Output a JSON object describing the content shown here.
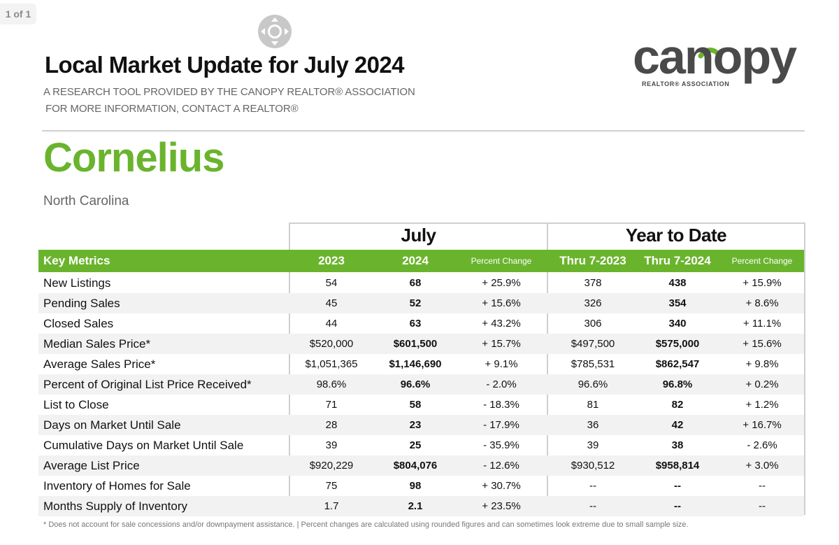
{
  "viewer": {
    "page_indicator": "1 of 1"
  },
  "header": {
    "title": "Local Market Update for July 2024",
    "subtitle_line1": "A RESEARCH TOOL PROVIDED BY THE CANOPY REALTOR® ASSOCIATION",
    "subtitle_line2": "FOR MORE INFORMATION, CONTACT A REALTOR®"
  },
  "logo": {
    "wordmark": "canopy",
    "tagline": "REALTOR® ASSOCIATION",
    "arc_color": "#6ab42d",
    "text_color": "#4a4a4a"
  },
  "location": {
    "city": "Cornelius",
    "state": "North Carolina"
  },
  "colors": {
    "accent_green": "#6ab42d",
    "row_alt": "#f2f2f2"
  },
  "table": {
    "group_july": "July",
    "group_ytd": "Year to Date",
    "headers": {
      "metric": "Key Metrics",
      "july_2023": "2023",
      "july_2024": "2024",
      "july_pct": "Percent Change",
      "ytd_2023": "Thru 7-2023",
      "ytd_2024": "Thru 7-2024",
      "ytd_pct": "Percent Change"
    },
    "rows": [
      {
        "metric": "New Listings",
        "j23": "54",
        "j24": "68",
        "jpct": "+ 25.9%",
        "y23": "378",
        "y24": "438",
        "ypct": "+ 15.9%"
      },
      {
        "metric": "Pending Sales",
        "j23": "45",
        "j24": "52",
        "jpct": "+ 15.6%",
        "y23": "326",
        "y24": "354",
        "ypct": "+ 8.6%"
      },
      {
        "metric": "Closed Sales",
        "j23": "44",
        "j24": "63",
        "jpct": "+ 43.2%",
        "y23": "306",
        "y24": "340",
        "ypct": "+ 11.1%"
      },
      {
        "metric": "Median Sales Price*",
        "j23": "$520,000",
        "j24": "$601,500",
        "jpct": "+ 15.7%",
        "y23": "$497,500",
        "y24": "$575,000",
        "ypct": "+ 15.6%"
      },
      {
        "metric": "Average Sales Price*",
        "j23": "$1,051,365",
        "j24": "$1,146,690",
        "jpct": "+ 9.1%",
        "y23": "$785,531",
        "y24": "$862,547",
        "ypct": "+ 9.8%"
      },
      {
        "metric": "Percent of Original List Price Received*",
        "j23": "98.6%",
        "j24": "96.6%",
        "jpct": "- 2.0%",
        "y23": "96.6%",
        "y24": "96.8%",
        "ypct": "+ 0.2%"
      },
      {
        "metric": "List to Close",
        "j23": "71",
        "j24": "58",
        "jpct": "- 18.3%",
        "y23": "81",
        "y24": "82",
        "ypct": "+ 1.2%"
      },
      {
        "metric": "Days on Market Until Sale",
        "j23": "28",
        "j24": "23",
        "jpct": "- 17.9%",
        "y23": "36",
        "y24": "42",
        "ypct": "+ 16.7%"
      },
      {
        "metric": "Cumulative Days on Market Until Sale",
        "j23": "39",
        "j24": "25",
        "jpct": "- 35.9%",
        "y23": "39",
        "y24": "38",
        "ypct": "- 2.6%"
      },
      {
        "metric": "Average List Price",
        "j23": "$920,229",
        "j24": "$804,076",
        "jpct": "- 12.6%",
        "y23": "$930,512",
        "y24": "$958,814",
        "ypct": "+ 3.0%"
      },
      {
        "metric": "Inventory of Homes for Sale",
        "j23": "75",
        "j24": "98",
        "jpct": "+ 30.7%",
        "y23": "--",
        "y24": "--",
        "ypct": "--"
      },
      {
        "metric": "Months Supply of Inventory",
        "j23": "1.7",
        "j24": "2.1",
        "jpct": "+ 23.5%",
        "y23": "--",
        "y24": "--",
        "ypct": "--"
      }
    ]
  },
  "footer": {
    "note": "* Does not account for sale concessions and/or downpayment assistance.  |  Percent changes are calculated using rounded figures and can sometimes look extreme due to small sample size."
  }
}
